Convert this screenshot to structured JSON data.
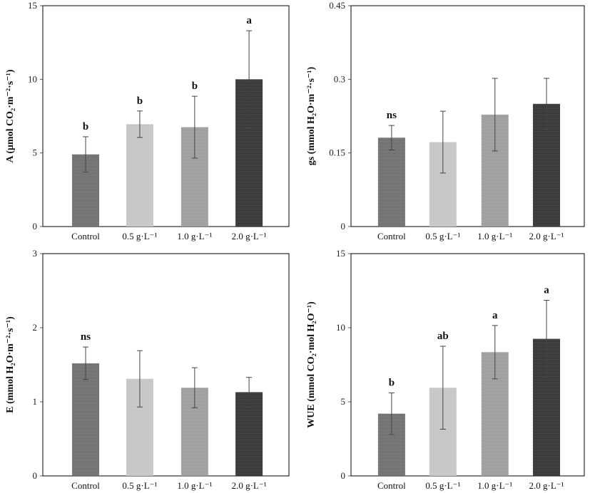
{
  "chart_data": [
    {
      "type": "bar",
      "panel": "top-left",
      "categories": [
        "Control",
        "0.5 g·L⁻¹",
        "1.0 g·L⁻¹",
        "2.0 g·L⁻¹"
      ],
      "values": [
        4.9,
        6.95,
        6.75,
        10.0
      ],
      "errors": [
        1.2,
        0.9,
        2.1,
        3.3
      ],
      "significance": [
        "b",
        "b",
        "b",
        "a"
      ],
      "ylabel": "A (μmol CO₂·m⁻²·s⁻¹)",
      "ylim": [
        0,
        15
      ],
      "yticks": [
        "0",
        "5",
        "10",
        "15"
      ],
      "ytick_values": [
        0,
        5,
        10,
        15
      ]
    },
    {
      "type": "bar",
      "panel": "top-right",
      "categories": [
        "Control",
        "0.5 g·L⁻¹",
        "1.0 g·L⁻¹",
        "2.0 g·L⁻¹"
      ],
      "values": [
        0.181,
        0.172,
        0.228,
        0.25
      ],
      "errors": [
        0.025,
        0.063,
        0.074,
        0.052
      ],
      "significance": [
        "ns",
        "",
        "",
        ""
      ],
      "ylabel": "gs (mmol H₂O·m⁻²·s⁻¹)",
      "ylim": [
        0,
        0.45
      ],
      "yticks": [
        "0",
        "0.15",
        "0.3",
        "0.45"
      ],
      "ytick_values": [
        0,
        0.15,
        0.3,
        0.45
      ]
    },
    {
      "type": "bar",
      "panel": "bottom-left",
      "categories": [
        "Control",
        "0.5 g·L⁻¹",
        "1.0 g·L⁻¹",
        "2.0 g·L⁻¹"
      ],
      "values": [
        1.52,
        1.31,
        1.19,
        1.13
      ],
      "errors": [
        0.22,
        0.38,
        0.27,
        0.2
      ],
      "significance": [
        "ns",
        "",
        "",
        ""
      ],
      "ylabel": "E (mmol H₂O·m⁻²·s⁻¹)",
      "ylim": [
        0,
        3
      ],
      "yticks": [
        "0",
        "1",
        "2",
        "3"
      ],
      "ytick_values": [
        0,
        1,
        2,
        3
      ]
    },
    {
      "type": "bar",
      "panel": "bottom-right",
      "categories": [
        "Control",
        "0.5 g·L⁻¹",
        "1.0 g·L⁻¹",
        "2.0 g·L⁻¹"
      ],
      "values": [
        4.2,
        5.95,
        8.35,
        9.25
      ],
      "errors": [
        1.4,
        2.8,
        1.8,
        2.6
      ],
      "significance": [
        "b",
        "ab",
        "a",
        "a"
      ],
      "ylabel": "WUE (mmol CO₂·mol H₂O⁻¹)",
      "ylim": [
        0,
        15
      ],
      "yticks": [
        "0",
        "5",
        "10",
        "15"
      ],
      "ytick_values": [
        0,
        5,
        10,
        15
      ]
    }
  ],
  "colors": {
    "bars": [
      "#6b6b6b",
      "#c4c4c4",
      "#9a9a9a",
      "#2e2e2e"
    ],
    "axis": "#555555",
    "frame": "#000000",
    "errorbar": "#444444"
  }
}
